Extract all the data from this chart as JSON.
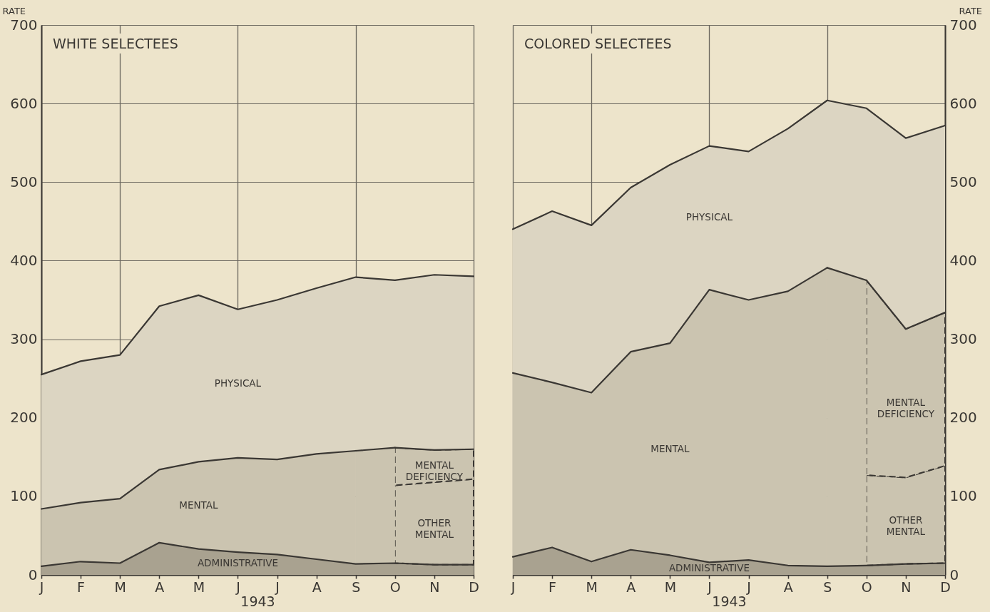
{
  "chart_data": [
    {
      "type": "area",
      "title": "WHITE SELECTEES",
      "xlabel": "1943",
      "ylabel": "RATE",
      "categories": [
        "J",
        "F",
        "M",
        "A",
        "M",
        "J",
        "J",
        "A",
        "S",
        "O",
        "N",
        "D"
      ],
      "stacked": true,
      "grid": true,
      "ylim": [
        0,
        700
      ],
      "yticks": [
        0,
        100,
        200,
        300,
        400,
        500,
        600,
        700
      ],
      "series": [
        {
          "name": "ADMINISTRATIVE",
          "color": "#a9a290",
          "values": [
            11,
            17,
            15,
            41,
            33,
            29,
            26,
            20,
            14,
            15,
            13,
            13
          ]
        },
        {
          "name": "MENTAL",
          "color": "#cbc4b0",
          "values": [
            73,
            75,
            82,
            93,
            111,
            120,
            121,
            134,
            144,
            null,
            null,
            null
          ]
        },
        {
          "name": "OTHER MENTAL",
          "color": "#cbc4b0",
          "line_style": "dashed",
          "values": [
            null,
            null,
            null,
            null,
            null,
            null,
            null,
            null,
            null,
            99,
            105,
            109
          ]
        },
        {
          "name": "MENTAL DEFICIENCY",
          "color": "#cbc4b0",
          "line_style": "dashed",
          "values": [
            null,
            null,
            null,
            null,
            null,
            null,
            null,
            null,
            null,
            48,
            41,
            38
          ]
        },
        {
          "name": "PHYSICAL",
          "color": "#dcd5c2",
          "values": [
            171,
            180,
            183,
            208,
            212,
            189,
            203,
            211,
            221,
            213,
            223,
            220
          ]
        }
      ]
    },
    {
      "type": "area",
      "title": "COLORED SELECTEES",
      "xlabel": "1943",
      "y2label": "RATE",
      "categories": [
        "J",
        "F",
        "M",
        "A",
        "M",
        "J",
        "J",
        "A",
        "S",
        "O",
        "N",
        "D"
      ],
      "stacked": true,
      "grid": true,
      "y2lim": [
        0,
        700
      ],
      "y2ticks": [
        0,
        100,
        200,
        300,
        400,
        500,
        600,
        700
      ],
      "series": [
        {
          "name": "ADMINISTRATIVE",
          "color": "#a9a290",
          "axis": "y2",
          "values": [
            23,
            35,
            17,
            32,
            25,
            16,
            19,
            12,
            11,
            12,
            14,
            15
          ]
        },
        {
          "name": "MENTAL",
          "color": "#cbc4b0",
          "axis": "y2",
          "values": [
            234,
            210,
            215,
            252,
            270,
            347,
            331,
            349,
            380,
            null,
            null,
            null
          ]
        },
        {
          "name": "OTHER MENTAL",
          "color": "#cbc4b0",
          "axis": "y2",
          "line_style": "dashed",
          "values": [
            null,
            null,
            null,
            null,
            null,
            null,
            null,
            null,
            null,
            115,
            110,
            124
          ]
        },
        {
          "name": "MENTAL DEFICIENCY",
          "color": "#cbc4b0",
          "axis": "y2",
          "line_style": "dashed",
          "values": [
            null,
            null,
            null,
            null,
            null,
            null,
            null,
            null,
            null,
            248,
            189,
            195
          ]
        },
        {
          "name": "PHYSICAL",
          "color": "#dcd5c2",
          "axis": "y2",
          "values": [
            183,
            218,
            213,
            209,
            227,
            183,
            189,
            207,
            213,
            219,
            243,
            238
          ]
        }
      ]
    }
  ]
}
